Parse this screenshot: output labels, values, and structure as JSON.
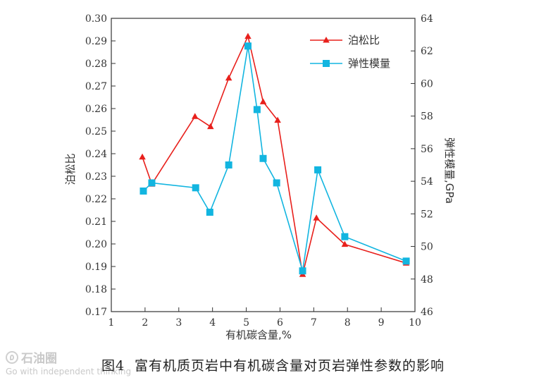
{
  "chart_data": {
    "type": "line",
    "title": "",
    "xlabel": "有机碳含量,%",
    "ylabel_left": "泊松比",
    "ylabel_right": "弹性模量,GPa",
    "xlim": [
      1,
      10
    ],
    "ylim_left": [
      0.17,
      0.3
    ],
    "ylim_right": [
      46,
      64
    ],
    "x_ticks": [
      1,
      2,
      3,
      4,
      5,
      6,
      7,
      8,
      9,
      10
    ],
    "y_left_ticks": [
      0.17,
      0.18,
      0.19,
      0.2,
      0.21,
      0.22,
      0.23,
      0.24,
      0.25,
      0.26,
      0.27,
      0.28,
      0.29,
      0.3
    ],
    "y_right_ticks": [
      46,
      48,
      50,
      52,
      54,
      56,
      58,
      60,
      62,
      64
    ],
    "legend_position": "top-right",
    "grid": false,
    "series": [
      {
        "name": "泊松比",
        "axis": "left",
        "color": "#e8201c",
        "marker": "triangle",
        "x": [
          1.92,
          2.2,
          3.48,
          3.94,
          4.48,
          5.05,
          5.5,
          5.93,
          6.67,
          7.08,
          7.92,
          9.74
        ],
        "y": [
          0.2385,
          0.2265,
          0.2565,
          0.252,
          0.2735,
          0.292,
          0.263,
          0.2548,
          0.1865,
          0.2115,
          0.1998,
          0.1915
        ]
      },
      {
        "name": "弹性模量",
        "axis": "right",
        "color": "#12b5e0",
        "marker": "square",
        "x": [
          1.95,
          2.2,
          3.5,
          3.92,
          4.48,
          5.05,
          5.32,
          5.5,
          5.9,
          6.67,
          7.12,
          7.92,
          9.74
        ],
        "y": [
          53.4,
          53.9,
          53.6,
          52.1,
          55.0,
          62.3,
          58.4,
          55.4,
          53.9,
          48.5,
          54.7,
          50.6,
          49.1
        ]
      }
    ]
  },
  "caption": {
    "figure_number": "图4",
    "text": "富有机质页岩中有机碳含量对页岩弹性参数的影响"
  },
  "watermark": {
    "brand": "石油圈",
    "tagline": "Go with independent thinking"
  }
}
